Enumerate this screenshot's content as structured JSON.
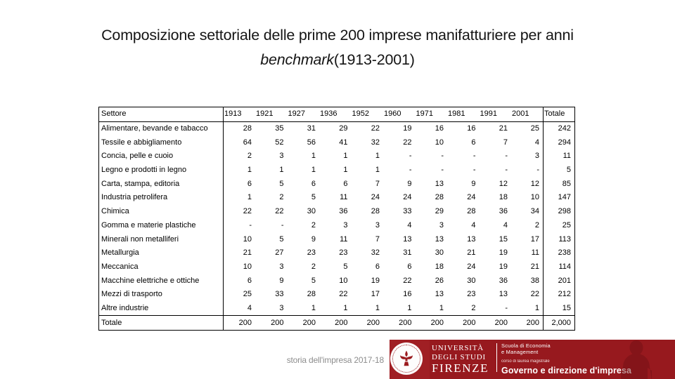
{
  "slide": {
    "title_line1": "Composizione settoriale delle prime 200 imprese manifatturiere per anni",
    "title_italic": "benchmark",
    "title_suffix": "(1913-2001)"
  },
  "table": {
    "row_header": "Settore",
    "years": [
      "1913",
      "1921",
      "1927",
      "1936",
      "1952",
      "1960",
      "1971",
      "1981",
      "1991",
      "2001"
    ],
    "total_label": "Totale",
    "rows": [
      {
        "label": "Alimentare, bevande e tabacco",
        "values": [
          "28",
          "35",
          "31",
          "29",
          "22",
          "19",
          "16",
          "16",
          "21",
          "25"
        ],
        "total": "242"
      },
      {
        "label": "Tessile e abbigliamento",
        "values": [
          "64",
          "52",
          "56",
          "41",
          "32",
          "22",
          "10",
          "6",
          "7",
          "4"
        ],
        "total": "294"
      },
      {
        "label": "Concia, pelle e cuoio",
        "values": [
          "2",
          "3",
          "1",
          "1",
          "1",
          "-",
          "-",
          "-",
          "-",
          "3"
        ],
        "total": "11"
      },
      {
        "label": "Legno e prodotti in legno",
        "values": [
          "1",
          "1",
          "1",
          "1",
          "1",
          "-",
          "-",
          "-",
          "-",
          "-"
        ],
        "total": "5"
      },
      {
        "label": "Carta, stampa, editoria",
        "values": [
          "6",
          "5",
          "6",
          "6",
          "7",
          "9",
          "13",
          "9",
          "12",
          "12"
        ],
        "total": "85"
      },
      {
        "label": "Industria petrolifera",
        "values": [
          "1",
          "2",
          "5",
          "11",
          "24",
          "24",
          "28",
          "24",
          "18",
          "10"
        ],
        "total": "147"
      },
      {
        "label": "Chimica",
        "values": [
          "22",
          "22",
          "30",
          "36",
          "28",
          "33",
          "29",
          "28",
          "36",
          "34"
        ],
        "total": "298"
      },
      {
        "label": "Gomma e materie plastiche",
        "values": [
          "-",
          "-",
          "2",
          "3",
          "3",
          "4",
          "3",
          "4",
          "4",
          "2"
        ],
        "total": "25"
      },
      {
        "label": "Minerali non metalliferi",
        "values": [
          "10",
          "5",
          "9",
          "11",
          "7",
          "13",
          "13",
          "13",
          "15",
          "17"
        ],
        "total": "113"
      },
      {
        "label": "Metallurgia",
        "values": [
          "21",
          "27",
          "23",
          "23",
          "32",
          "31",
          "30",
          "21",
          "19",
          "11"
        ],
        "total": "238"
      },
      {
        "label": "Meccanica",
        "values": [
          "10",
          "3",
          "2",
          "5",
          "6",
          "6",
          "18",
          "24",
          "19",
          "21"
        ],
        "total": "114"
      },
      {
        "label": "Macchine elettriche e ottiche",
        "values": [
          "6",
          "9",
          "5",
          "10",
          "19",
          "22",
          "26",
          "30",
          "36",
          "38"
        ],
        "total": "201"
      },
      {
        "label": "Mezzi di trasporto",
        "values": [
          "25",
          "33",
          "28",
          "22",
          "17",
          "16",
          "13",
          "23",
          "13",
          "22"
        ],
        "total": "212"
      },
      {
        "label": "Altre industrie",
        "values": [
          "4",
          "3",
          "1",
          "1",
          "1",
          "1",
          "1",
          "2",
          "-",
          "1"
        ],
        "total": "15"
      }
    ],
    "total_row": {
      "label": "Totale",
      "values": [
        "200",
        "200",
        "200",
        "200",
        "200",
        "200",
        "200",
        "200",
        "200",
        "200"
      ],
      "total": "2,000"
    }
  },
  "footer": {
    "course": "storia dell'impresa 2017-18"
  },
  "banner": {
    "university_line1": "UNIVERSITÀ",
    "university_line2": "DEGLI STUDI",
    "university_line3": "FIRENZE",
    "school_line1": "Scuola di Economia",
    "school_line2": "e Management",
    "degree_line": "corso di laurea magistrale",
    "program": "Governo e direzione d'impresa",
    "colors": {
      "banner_red": "#97191e",
      "seal_square_red": "#a01f24",
      "watermark_red": "#6e1013",
      "text_white": "#ffffff"
    }
  }
}
